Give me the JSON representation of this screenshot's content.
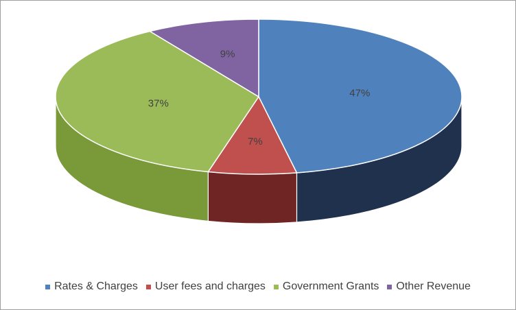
{
  "chart_data": {
    "type": "pie",
    "style": "3d",
    "title": "",
    "slices": [
      {
        "label": "Rates & Charges",
        "value": 47,
        "display": "47%",
        "color": "#4f81bd",
        "side_color": "#20314d"
      },
      {
        "label": "User fees and charges",
        "value": 7,
        "display": "7%",
        "color": "#c0504d",
        "side_color": "#6e2523"
      },
      {
        "label": "Government Grants",
        "value": 37,
        "display": "37%",
        "color": "#9bbb59",
        "side_color": "#7a9a3a"
      },
      {
        "label": "Other Revenue",
        "value": 9,
        "display": "9%",
        "color": "#8064a2",
        "side_color": "#4b3a61"
      }
    ],
    "legend_position": "bottom"
  }
}
